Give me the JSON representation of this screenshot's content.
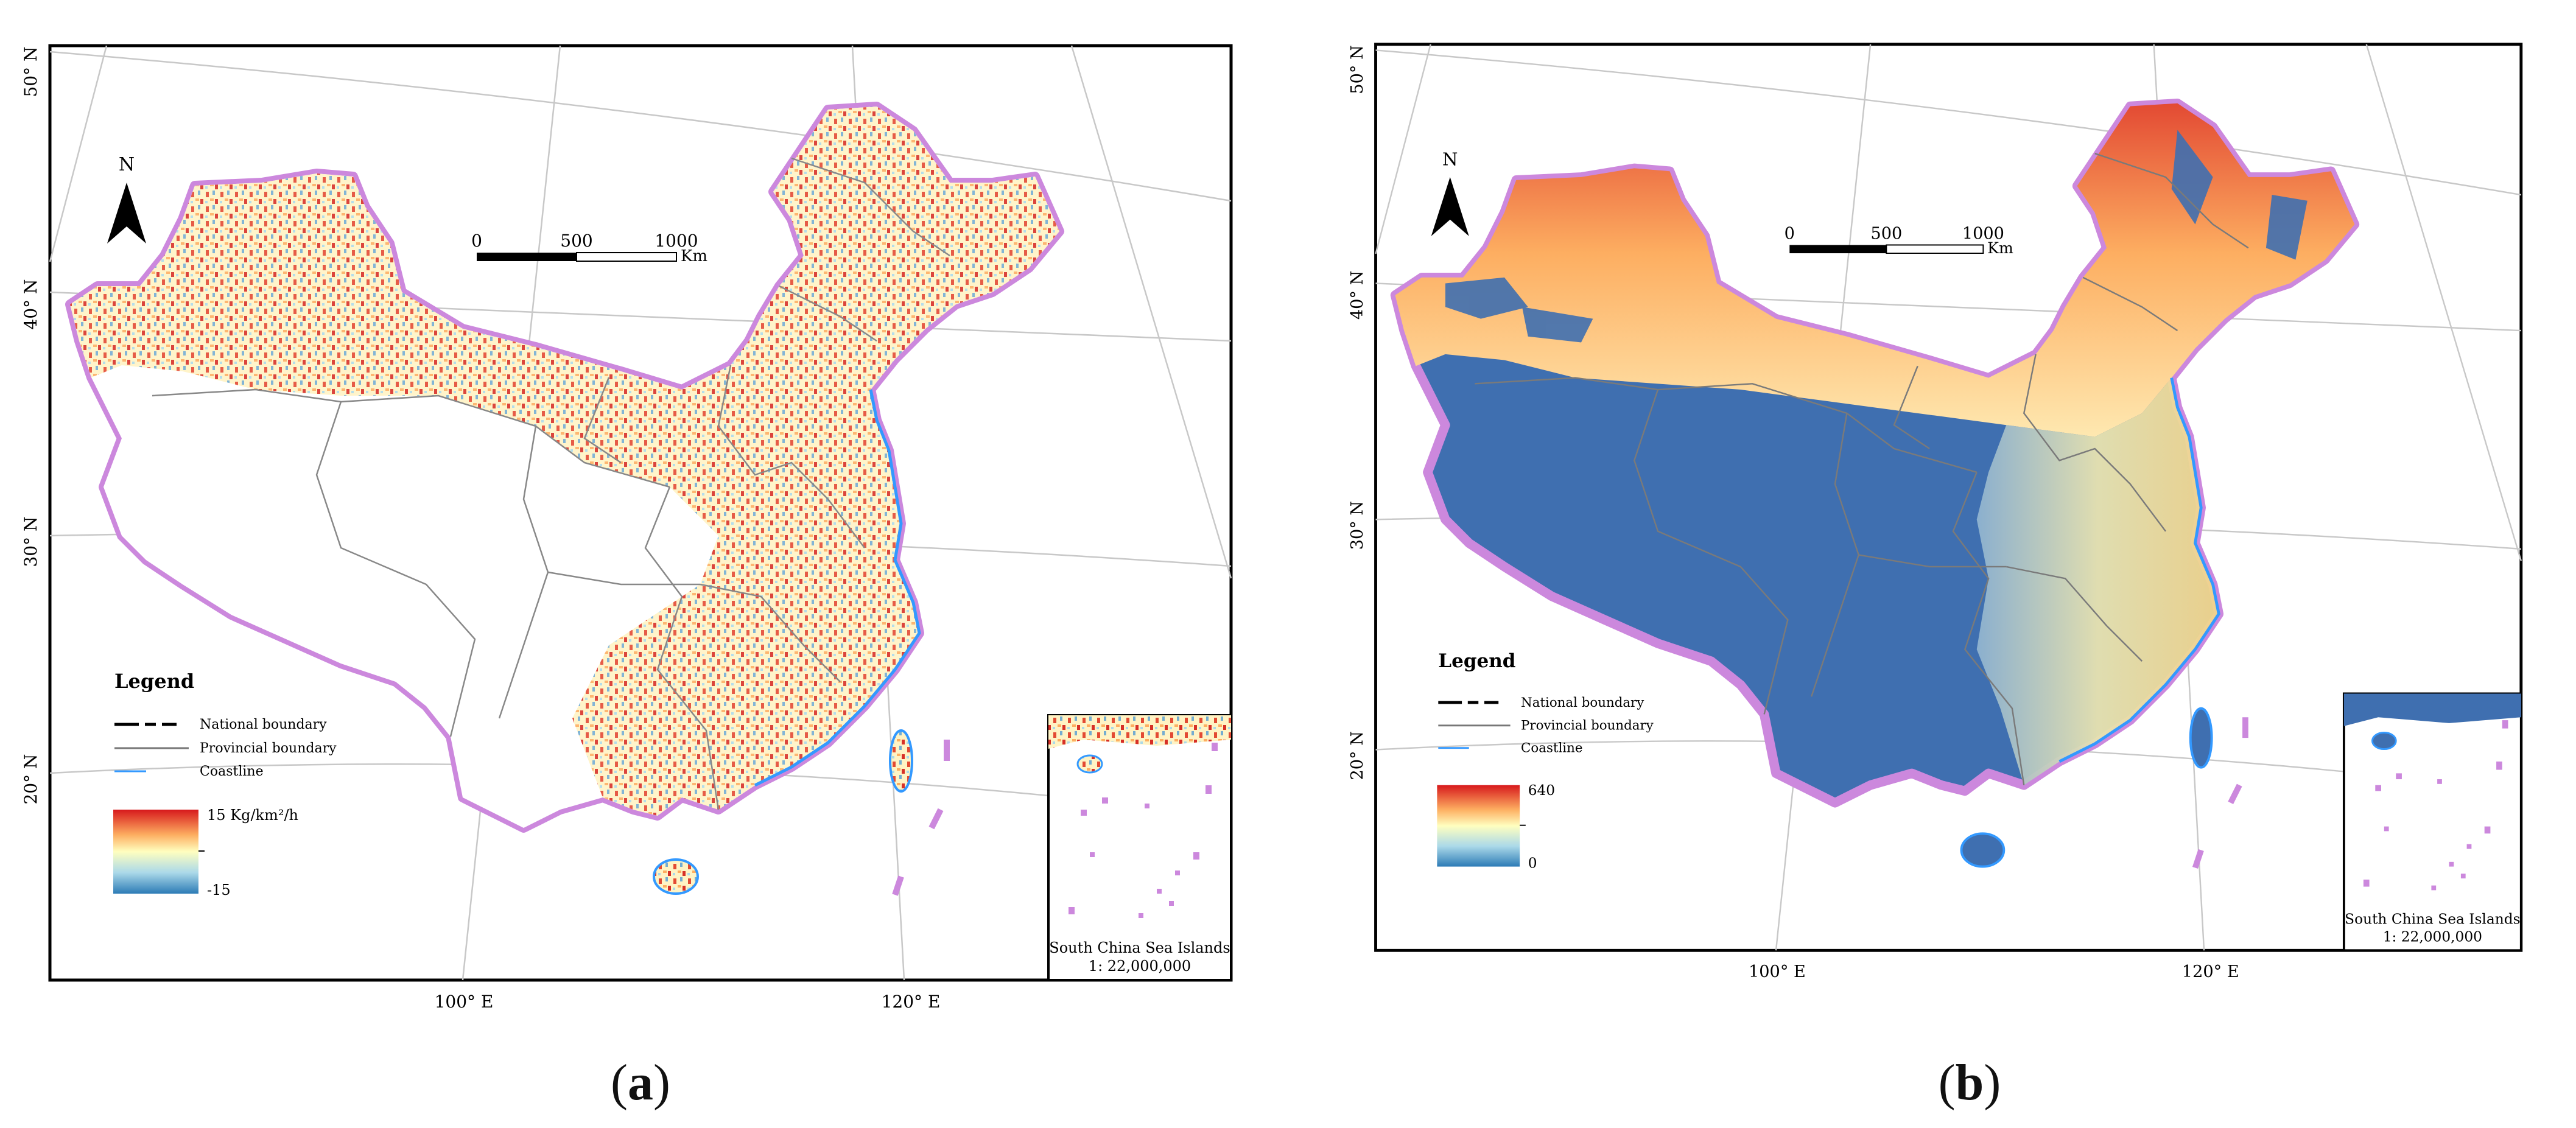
{
  "panels": [
    {
      "id": "a",
      "caption": "a",
      "scale_bar": {
        "ticks": [
          "0",
          "500",
          "1000"
        ],
        "unit": "Km"
      },
      "north_label": "N",
      "legend": {
        "title": "Legend",
        "items": [
          "National boundary",
          "Provincial boundary",
          "Coastline"
        ],
        "colorbar_max": "15  Kg/km²/h",
        "colorbar_min": "-15"
      },
      "lat_labels": [
        "50° N",
        "40° N",
        "30° N",
        "20° N"
      ],
      "lon_labels": [
        "100° E",
        "120° E"
      ],
      "inset": {
        "title": "South China Sea Islands",
        "scale": "1: 22,000,000"
      },
      "fill_style": "change"
    },
    {
      "id": "b",
      "caption": "b",
      "scale_bar": {
        "ticks": [
          "0",
          "500",
          "1000"
        ],
        "unit": "Km"
      },
      "north_label": "N",
      "legend": {
        "title": "Legend",
        "items": [
          "National boundary",
          "Provincial boundary",
          "Coastline"
        ],
        "colorbar_max": "640",
        "colorbar_min": "0"
      },
      "lat_labels": [
        "50° N",
        "40° N",
        "30° N",
        "20° N"
      ],
      "lon_labels": [
        "100° E",
        "120° E"
      ],
      "inset": {
        "title": "South China Sea Islands",
        "scale": "1: 22,000,000"
      },
      "fill_style": "magnitude"
    }
  ],
  "colors": {
    "ramp_high": "#d7191c",
    "ramp_mid": "#ffffbf",
    "ramp_low": "#2c7bb6",
    "national_boundary_halo": "#cc88dd",
    "coastline": "#3399ff",
    "provincial_boundary": "#888888"
  }
}
